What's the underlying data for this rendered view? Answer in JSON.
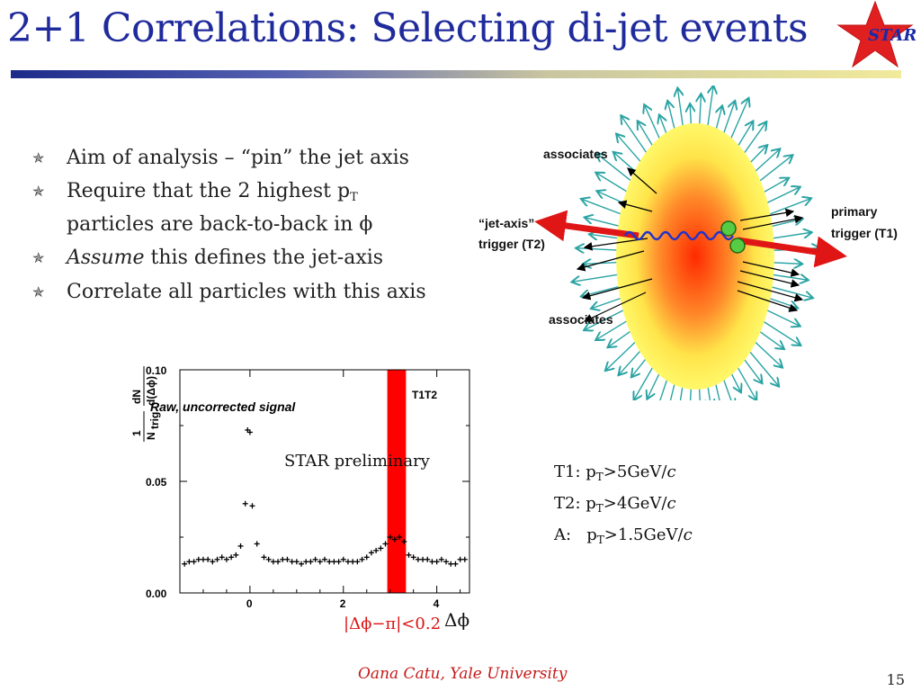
{
  "slide": {
    "title": "2+1 Correlations: Selecting di-jet events",
    "logo_text": "STAR",
    "footer": "Oana Catu, Yale University",
    "page_number": "15"
  },
  "bullets": [
    {
      "text": "Aim of analysis – “pin” the jet axis"
    },
    {
      "text_a": "Require that the 2 highest p",
      "sub": "T",
      "text_b": "particles are back-to-back in ϕ"
    },
    {
      "italic": "Assume",
      "text": " this defines the jet-axis"
    },
    {
      "text": "Correlate all particles with this axis"
    }
  ],
  "diagram": {
    "associates_top": "associates",
    "associates_bottom": "associates",
    "t2_label_1": "“jet-axis”",
    "t2_label_2": "trigger (T2)",
    "t1_label_1": "primary",
    "t1_label_2": "trigger (T1)"
  },
  "plot": {
    "signal_label": "Raw, uncorrected signal",
    "preliminary": "STAR preliminary",
    "band_label": "T1T2",
    "cut_label": "|Δϕ−π|<0.2",
    "xlabel": "Δϕ",
    "y_num_a": "1",
    "y_den_a": "N",
    "y_den_sub": "trig",
    "y_num_b": "dN",
    "y_den_b": "d(Δϕ)",
    "yticks": [
      "0.10",
      "0.05",
      "0.00"
    ],
    "xticks": [
      "0",
      "2",
      "4"
    ]
  },
  "chart_data": {
    "type": "scatter",
    "title": "",
    "xlabel": "Δϕ",
    "ylabel": "1/N_trig dN/d(Δϕ)",
    "xlim": [
      -1.5,
      4.7
    ],
    "ylim": [
      0,
      0.1
    ],
    "shaded_band": {
      "x": [
        2.94,
        3.34
      ],
      "label": "T1T2",
      "color": "#ff0000"
    },
    "series": [
      {
        "x": [
          -1.4,
          -1.3,
          -1.2,
          -1.1,
          -1.0,
          -0.9,
          -0.8,
          -0.7,
          -0.6,
          -0.5,
          -0.4,
          -0.3,
          -0.2,
          -0.1,
          -0.05,
          0.0,
          0.05,
          0.15,
          0.3,
          0.4,
          0.5,
          0.6,
          0.7,
          0.8,
          0.9,
          1.0,
          1.1,
          1.2,
          1.3,
          1.4,
          1.5,
          1.6,
          1.7,
          1.8,
          1.9,
          2.0,
          2.1,
          2.2,
          2.3,
          2.4,
          2.5,
          2.6,
          2.7,
          2.8,
          2.9,
          3.0,
          3.1,
          3.2,
          3.3,
          3.4,
          3.5,
          3.6,
          3.7,
          3.8,
          3.9,
          4.0,
          4.1,
          4.2,
          4.3,
          4.4,
          4.5,
          4.6
        ],
        "y": [
          0.013,
          0.014,
          0.014,
          0.015,
          0.015,
          0.015,
          0.014,
          0.015,
          0.016,
          0.015,
          0.016,
          0.017,
          0.021,
          0.04,
          0.073,
          0.072,
          0.039,
          0.022,
          0.016,
          0.015,
          0.014,
          0.014,
          0.015,
          0.015,
          0.014,
          0.014,
          0.013,
          0.014,
          0.014,
          0.015,
          0.014,
          0.015,
          0.014,
          0.014,
          0.014,
          0.015,
          0.014,
          0.014,
          0.014,
          0.015,
          0.016,
          0.018,
          0.019,
          0.02,
          0.022,
          0.025,
          0.024,
          0.025,
          0.023,
          0.017,
          0.016,
          0.015,
          0.015,
          0.015,
          0.014,
          0.014,
          0.015,
          0.014,
          0.013,
          0.013,
          0.015,
          0.015
        ]
      }
    ]
  },
  "cuts": [
    {
      "a": "T1: p",
      "sub": "T",
      "b": ">5GeV/",
      "c": "c"
    },
    {
      "a": "T2: p",
      "sub": "T",
      "b": ">4GeV/",
      "c": "c"
    },
    {
      "a": "A:   p",
      "sub": "T",
      "b": ">1.5GeV/",
      "c": "c"
    }
  ],
  "colors": {
    "title": "#1f2a9c",
    "footer": "#c41a1a",
    "band": "#ff0000",
    "star": "#e02020",
    "arrow": "#2aa3a3"
  }
}
